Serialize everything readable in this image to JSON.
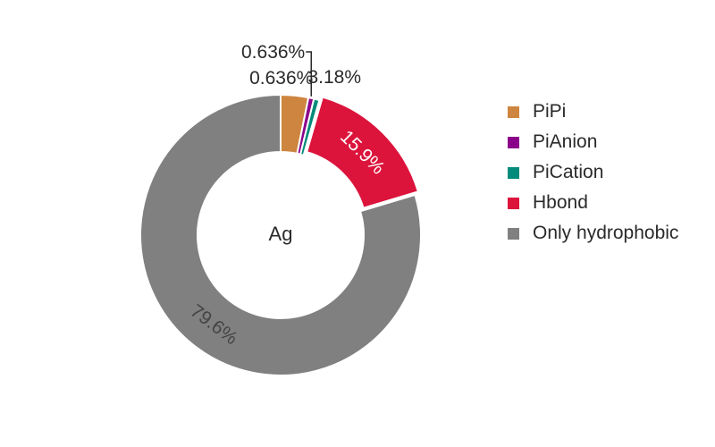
{
  "chart_data": {
    "type": "pie",
    "variant": "donut",
    "center_label": "Ag",
    "slices": [
      {
        "name": "PiPi",
        "value": 3.18,
        "label": "3.18%",
        "color": "#cd853f"
      },
      {
        "name": "PiAnion",
        "value": 0.636,
        "label": "0.636%",
        "color": "#8b008b"
      },
      {
        "name": "PiCation",
        "value": 0.636,
        "label": "0.636%",
        "color": "#008b7a"
      },
      {
        "name": "Hbond",
        "value": 15.9,
        "label": "15.9%",
        "color": "#dc143c"
      },
      {
        "name": "Only hydrophobic",
        "value": 79.6,
        "label": "79.6%",
        "color": "#808080"
      }
    ],
    "legend_position": "right"
  }
}
